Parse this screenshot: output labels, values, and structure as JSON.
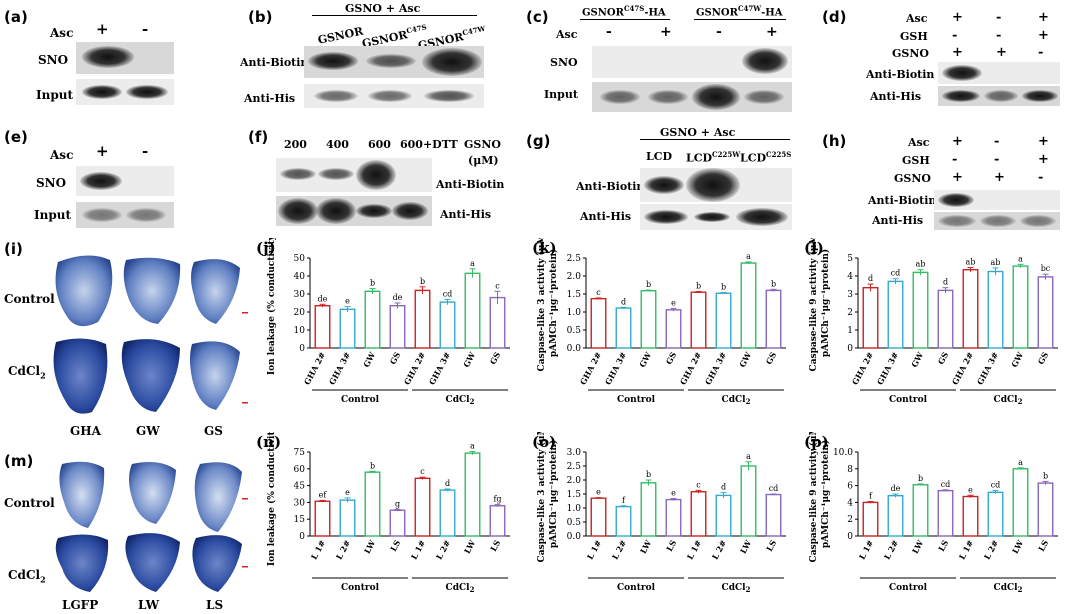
{
  "panels": {
    "a": {
      "label": "(a)",
      "asc": "Asc",
      "plus": "+",
      "minus": "-",
      "sno": "SNO",
      "input": "Input"
    },
    "b": {
      "label": "(b)",
      "header": "GSNO + Asc",
      "lanes": [
        "GSNOR",
        "GSNOR",
        "GSNOR"
      ],
      "sups": [
        "",
        "C47S",
        "C47W"
      ],
      "row1": "Anti-Biotin",
      "row2": "Anti-His"
    },
    "c": {
      "label": "(c)",
      "l1": "GSNOR",
      "s1": "C47S",
      "h1": "-HA",
      "l2": "GSNOR",
      "s2": "C47W",
      "h2": "-HA",
      "asc": "Asc",
      "signs": [
        "-",
        "+",
        "-",
        "+"
      ],
      "sno": "SNO",
      "input": "Input"
    },
    "d": {
      "label": "(d)",
      "rows": [
        {
          "name": "Asc",
          "signs": [
            "+",
            "-",
            "+"
          ]
        },
        {
          "name": "GSH",
          "signs": [
            "-",
            "-",
            "+"
          ]
        },
        {
          "name": "GSNO",
          "signs": [
            "+",
            "+",
            "-"
          ]
        }
      ],
      "row1": "Anti-Biotin",
      "row2": "Anti-His"
    },
    "e": {
      "label": "(e)",
      "asc": "Asc",
      "plus": "+",
      "minus": "-",
      "sno": "SNO",
      "input": "Input"
    },
    "f": {
      "label": "(f)",
      "lanes": [
        "200",
        "400",
        "600",
        "600+DTT"
      ],
      "gsno": "GSNO",
      "unit": "(μM)",
      "row1": "Anti-Biotin",
      "row2": "Anti-His"
    },
    "g": {
      "label": "(g)",
      "header": "GSNO + Asc",
      "lanes": [
        "LCD",
        "LCD",
        "LCD"
      ],
      "sups": [
        "",
        "C225W",
        "C225S"
      ],
      "row1": "Anti-Biotin",
      "row2": "Anti-His"
    },
    "h": {
      "label": "(h)",
      "rows": [
        {
          "name": "Asc",
          "signs": [
            "+",
            "-",
            "+"
          ]
        },
        {
          "name": "GSH",
          "signs": [
            "-",
            "-",
            "+"
          ]
        },
        {
          "name": "GSNO",
          "signs": [
            "+",
            "+",
            "-"
          ]
        }
      ],
      "row1": "Anti-Biotin",
      "row2": "Anti-His"
    },
    "i": {
      "label": "(i)",
      "control": "Control",
      "cdcl": "CdCl",
      "sub": "2",
      "cols": [
        "GHA",
        "GW",
        "GS"
      ]
    },
    "m": {
      "label": "(m)",
      "control": "Control",
      "cdcl": "CdCl",
      "sub": "2",
      "cols": [
        "LGFP",
        "LW",
        "LS"
      ]
    }
  },
  "chart_data": [
    {
      "id": "j",
      "label": "(j)",
      "type": "bar",
      "ylabel": "Ion leakage (% conductivity)",
      "ylim": [
        0,
        50
      ],
      "yticks": [
        0,
        10,
        20,
        30,
        40,
        50
      ],
      "categories": [
        "GHA 2#",
        "GHA 3#",
        "GW",
        "GS",
        "GHA 2#",
        "GHA 3#",
        "GW",
        "GS"
      ],
      "values": [
        23.5,
        21.5,
        31.5,
        23.5,
        32,
        25.5,
        41.5,
        28
      ],
      "errors": [
        0.8,
        1.5,
        1.5,
        1.5,
        2,
        1.5,
        2.5,
        3.5
      ],
      "letters": [
        "de",
        "e",
        "b",
        "de",
        "b",
        "cd",
        "a",
        "c"
      ],
      "groups": [
        {
          "name": "Control"
        },
        {
          "name": "CdCl",
          "sub": "2"
        }
      ]
    },
    {
      "id": "k",
      "label": "(k)",
      "type": "bar",
      "ylabel1": "Caspase-like 3 activity (μM",
      "ylabel2": "pAMCh⁻¹μg⁻¹protein)",
      "ylim": [
        0,
        2.5
      ],
      "yticks": [
        "0.0",
        "0.5",
        "1.0",
        "1.5",
        "2.0",
        "2.5"
      ],
      "categories": [
        "GHA 2#",
        "GHA 3#",
        "GW",
        "GS",
        "GHA 2#",
        "GHA 3#",
        "GW",
        "GS"
      ],
      "values": [
        1.37,
        1.11,
        1.59,
        1.06,
        1.55,
        1.52,
        2.36,
        1.6
      ],
      "errors": [
        0.02,
        0.02,
        0.02,
        0.04,
        0.02,
        0.02,
        0.03,
        0.03
      ],
      "letters": [
        "c",
        "d",
        "b",
        "e",
        "b",
        "b",
        "a",
        "b"
      ],
      "groups": [
        {
          "name": "Control"
        },
        {
          "name": "CdCl",
          "sub": "2"
        }
      ]
    },
    {
      "id": "l",
      "label": "(l)",
      "type": "bar",
      "ylabel1": "Caspase-like 9 activity (μM",
      "ylabel2": "pAMCh⁻¹μg⁻¹protein)",
      "ylim": [
        0,
        5
      ],
      "yticks": [
        0,
        1,
        2,
        3,
        4,
        5
      ],
      "categories": [
        "GHA 2#",
        "GHA 3#",
        "GW",
        "GS",
        "GHA 2#",
        "GHA 3#",
        "GW",
        "GS"
      ],
      "values": [
        3.35,
        3.7,
        4.2,
        3.2,
        4.35,
        4.25,
        4.55,
        3.95
      ],
      "errors": [
        0.2,
        0.15,
        0.15,
        0.15,
        0.12,
        0.2,
        0.1,
        0.15
      ],
      "letters": [
        "d",
        "cd",
        "ab",
        "d",
        "ab",
        "ab",
        "a",
        "bc"
      ],
      "groups": [
        {
          "name": "Control"
        },
        {
          "name": "CdCl",
          "sub": "2"
        }
      ]
    },
    {
      "id": "n",
      "label": "(n)",
      "type": "bar",
      "ylabel": "Ion leakage (% conductivity)",
      "ylim": [
        0,
        75
      ],
      "yticks": [
        0,
        15,
        30,
        45,
        60,
        75
      ],
      "categories": [
        "L 1#",
        "L 2#",
        "LW",
        "LS",
        "L 1#",
        "L 2#",
        "LW",
        "LS"
      ],
      "values": [
        31,
        32,
        57,
        23,
        51.5,
        41,
        74,
        27
      ],
      "errors": [
        0.8,
        2,
        0.8,
        0.8,
        1,
        1,
        1.5,
        1
      ],
      "letters": [
        "ef",
        "e",
        "b",
        "g",
        "c",
        "d",
        "a",
        "fg"
      ],
      "groups": [
        {
          "name": "Control"
        },
        {
          "name": "CdCl",
          "sub": "2"
        }
      ]
    },
    {
      "id": "o",
      "label": "(o)",
      "type": "bar",
      "ylabel1": "Caspase-like 3 activity (μM",
      "ylabel2": "pAMCh⁻¹μg⁻¹protein)",
      "ylim": [
        0,
        3.0
      ],
      "yticks": [
        "0.0",
        "0.5",
        "1.0",
        "1.5",
        "2.0",
        "2.5",
        "3.0"
      ],
      "categories": [
        "L 1#",
        "L 2#",
        "LW",
        "LS",
        "L 1#",
        "L 2#",
        "LW",
        "LS"
      ],
      "values": [
        1.35,
        1.05,
        1.9,
        1.3,
        1.58,
        1.45,
        2.5,
        1.48
      ],
      "errors": [
        0.02,
        0.03,
        0.1,
        0.04,
        0.05,
        0.1,
        0.15,
        0.02
      ],
      "letters": [
        "e",
        "f",
        "b",
        "e",
        "c",
        "d",
        "a",
        "cd"
      ],
      "groups": [
        {
          "name": "Control"
        },
        {
          "name": "CdCl",
          "sub": "2"
        }
      ]
    },
    {
      "id": "p",
      "label": "(p)",
      "type": "bar",
      "ylabel1": "Caspase-like 9 activity (μM",
      "ylabel2": "pAMCh⁻¹μg⁻¹protein)",
      "ylim": [
        0,
        10
      ],
      "yticks": [
        "0",
        "2",
        "4",
        "6",
        "8",
        "10.0"
      ],
      "categories": [
        "L 1#",
        "L 2#",
        "LW",
        "LS",
        "L 1#",
        "L 2#",
        "LW",
        "LS"
      ],
      "values": [
        4.0,
        4.8,
        6.1,
        5.4,
        4.7,
        5.2,
        8.0,
        6.3
      ],
      "errors": [
        0.1,
        0.2,
        0.1,
        0.1,
        0.15,
        0.2,
        0.12,
        0.2
      ],
      "letters": [
        "f",
        "de",
        "b",
        "cd",
        "e",
        "cd",
        "a",
        "b"
      ],
      "groups": [
        {
          "name": "Control"
        },
        {
          "name": "CdCl",
          "sub": "2"
        }
      ]
    }
  ],
  "colors": [
    "#cc2222",
    "#33aacc",
    "#33bb66",
    "#8866bb"
  ]
}
